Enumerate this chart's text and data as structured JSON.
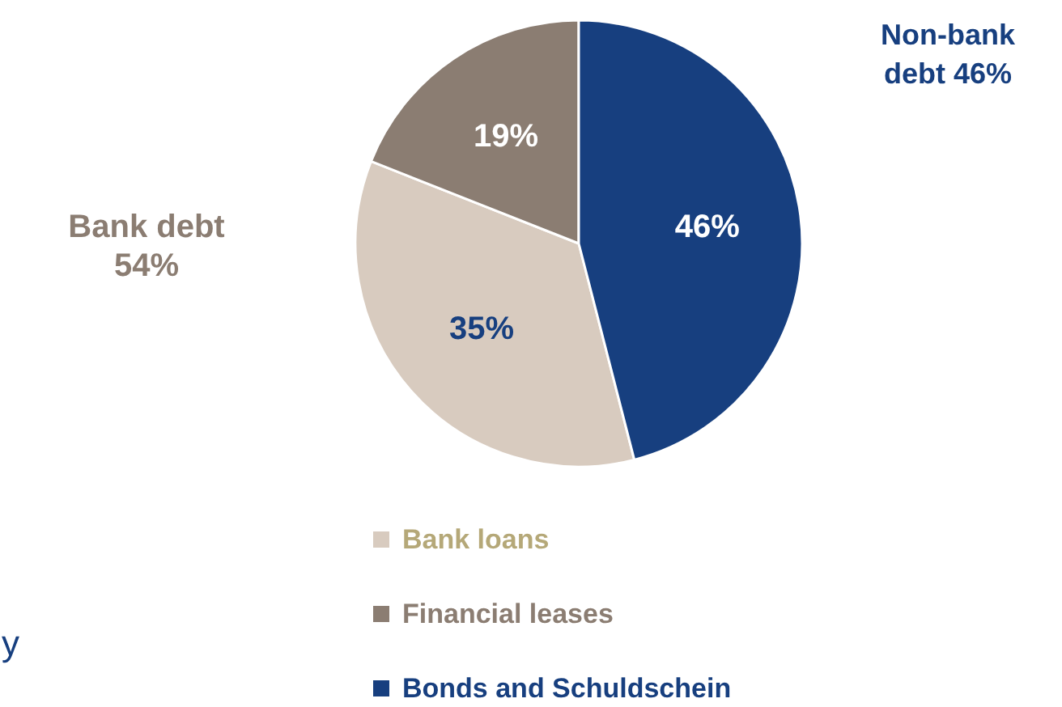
{
  "chart_data": {
    "type": "pie",
    "categories": [
      "Bank loans",
      "Financial leases",
      "Bonds and Schuldschein"
    ],
    "values": [
      35,
      19,
      46
    ],
    "colors": [
      "#d8cbbf",
      "#8b7d72",
      "#173f7f"
    ],
    "value_labels": [
      "35%",
      "19%",
      "46%"
    ],
    "legend": "bottom",
    "annotations": [
      "Bank debt\n54%",
      "Non-bank\ndebt 46%",
      "y"
    ]
  }
}
